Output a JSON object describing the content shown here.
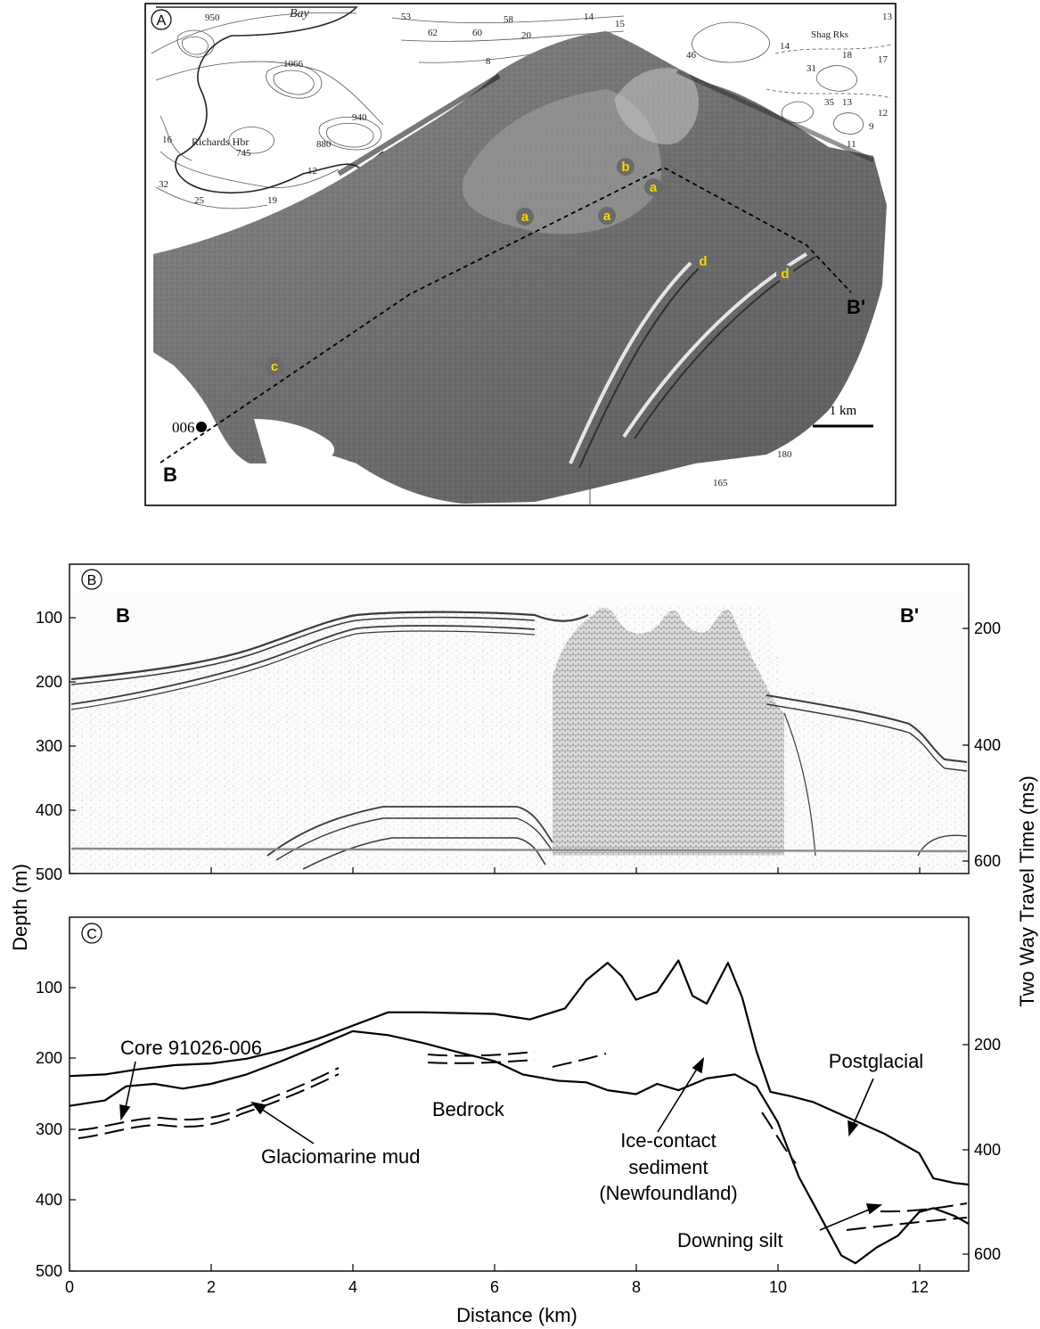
{
  "panel_a": {
    "label": "A",
    "map_labels": {
      "bay": "Bay",
      "harbour": "Richards Hbr",
      "shag_rocks": "Shag Rks",
      "soundings": [
        "950",
        "53",
        "62",
        "60",
        "58",
        "14",
        "15",
        "13",
        "1066",
        "8",
        "20",
        "14",
        "18",
        "17",
        "940",
        "880",
        "745",
        "12",
        "32",
        "31",
        "35",
        "13",
        "25",
        "19",
        "16",
        "11",
        "9",
        "46",
        "12",
        "180",
        "165"
      ],
      "site_b": "B",
      "site_b_prime": "B'",
      "core_site": "006"
    },
    "features": [
      {
        "letter": "a"
      },
      {
        "letter": "a"
      },
      {
        "letter": "a"
      },
      {
        "letter": "b"
      },
      {
        "letter": "c"
      },
      {
        "letter": "d"
      },
      {
        "letter": "d"
      }
    ],
    "scale_bar": "1 km",
    "feature_color": "#f5d800"
  },
  "panel_b": {
    "label": "B",
    "end_left": "B",
    "end_right": "B'"
  },
  "panel_c": {
    "label": "C",
    "annotations": {
      "core": "Core 91026-006",
      "glaciomarine": "Glaciomarine mud",
      "bedrock": "Bedrock",
      "ice_contact_1": "Ice-contact",
      "ice_contact_2": "sediment",
      "ice_contact_3": "(Newfoundland)",
      "postglacial": "Postglacial",
      "downing": "Downing silt"
    }
  },
  "axes": {
    "ylabel_left": "Depth (m)",
    "ylabel_right": "Two Way Travel Time (ms)",
    "xlabel": "Distance (km)"
  },
  "chart_data": {
    "type": "line",
    "xlabel": "Distance (km)",
    "ylabel": "Depth (m)",
    "xlim": [
      0,
      12.7
    ],
    "ylim": [
      500,
      50
    ],
    "x_ticks": [
      "0",
      "2",
      "4",
      "6",
      "8",
      "10",
      "12"
    ],
    "y_ticks": [
      "100",
      "200",
      "300",
      "400",
      "500"
    ],
    "y2_ticks": [
      "200",
      "400",
      "600"
    ],
    "series": [
      {
        "x": [
          0,
          0.5,
          1,
          1.5,
          2,
          2.5,
          3,
          3.5,
          4,
          4.5,
          5,
          5.5,
          6,
          6.5,
          7,
          7.3,
          7.6,
          7.8,
          8,
          8.3,
          8.6,
          8.8,
          9,
          9.3,
          9.5,
          9.7,
          9.9,
          10.2,
          10.5,
          11,
          11.5,
          12,
          12.2,
          12.5,
          12.7
        ],
        "y": [
          252,
          250,
          243,
          238,
          236,
          230,
          219,
          205,
          188,
          171,
          171,
          172,
          173,
          180,
          166,
          130,
          108,
          125,
          155,
          145,
          105,
          150,
          160,
          108,
          152,
          220,
          272,
          278,
          285,
          305,
          325,
          350,
          382,
          388,
          390
        ]
      },
      {
        "x": [
          0,
          0.5,
          0.8,
          1.2,
          1.6,
          2,
          2.5,
          3,
          3.5,
          4,
          4.5,
          5,
          5.5,
          6,
          6.4,
          6.9,
          7.3,
          7.6,
          8,
          8.3,
          8.6,
          9,
          9.4,
          9.7,
          10,
          10.3,
          10.6,
          10.9,
          11.1,
          11.4,
          11.7,
          12,
          12.2,
          12.5,
          12.7
        ],
        "y": [
          290,
          283,
          265,
          262,
          268,
          262,
          250,
          233,
          214,
          195,
          200,
          210,
          222,
          233,
          250,
          258,
          260,
          270,
          275,
          262,
          270,
          255,
          250,
          265,
          310,
          380,
          430,
          480,
          490,
          470,
          455,
          425,
          420,
          430,
          440
        ]
      }
    ]
  }
}
